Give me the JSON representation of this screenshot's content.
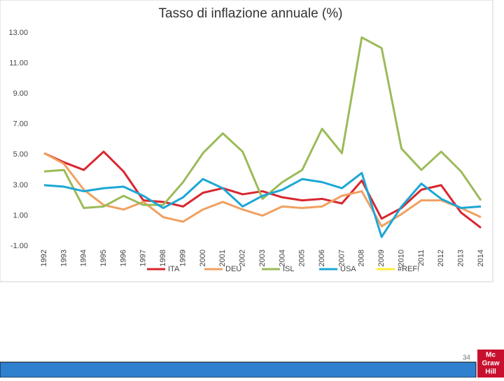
{
  "chart_data": {
    "type": "line",
    "title": "Tasso di inflazione annuale (%)",
    "categories": [
      "1992",
      "1993",
      "1994",
      "1995",
      "1996",
      "1997",
      "1998",
      "1999",
      "2000",
      "2001",
      "2002",
      "2003",
      "2004",
      "2005",
      "2006",
      "2007",
      "2008",
      "2009",
      "2010",
      "2011",
      "2012",
      "2013",
      "2014"
    ],
    "series": [
      {
        "name": "ITA",
        "color": "#d9262e",
        "values": [
          5.1,
          4.5,
          4.0,
          5.2,
          3.9,
          2.0,
          1.9,
          1.6,
          2.5,
          2.8,
          2.4,
          2.6,
          2.2,
          2.0,
          2.1,
          1.8,
          3.3,
          0.8,
          1.5,
          2.7,
          3.0,
          1.2,
          0.2
        ]
      },
      {
        "name": "DEU",
        "color": "#f0a060",
        "values": [
          5.1,
          4.4,
          2.7,
          1.7,
          1.4,
          1.9,
          0.9,
          0.6,
          1.4,
          1.9,
          1.4,
          1.0,
          1.6,
          1.5,
          1.6,
          2.3,
          2.6,
          0.3,
          1.1,
          2.0,
          2.0,
          1.5,
          0.9
        ]
      },
      {
        "name": "ISL",
        "color": "#9bbb59",
        "values": [
          3.9,
          4.0,
          1.5,
          1.6,
          2.3,
          1.7,
          1.7,
          3.2,
          5.1,
          6.4,
          5.2,
          2.1,
          3.2,
          4.0,
          6.7,
          5.1,
          12.7,
          12.0,
          5.4,
          4.0,
          5.2,
          3.9,
          2.0
        ]
      },
      {
        "name": "USA",
        "color": "#1ba7d6",
        "values": [
          3.0,
          2.9,
          2.6,
          2.8,
          2.9,
          2.3,
          1.5,
          2.2,
          3.4,
          2.8,
          1.6,
          2.3,
          2.7,
          3.4,
          3.2,
          2.8,
          3.8,
          -0.4,
          1.6,
          3.1,
          2.1,
          1.5,
          1.6
        ]
      },
      {
        "name": "#REF!",
        "color": "#ffee33",
        "values": [
          null,
          null,
          null,
          null,
          null,
          null,
          null,
          null,
          null,
          null,
          null,
          null,
          null,
          null,
          null,
          null,
          null,
          null,
          null,
          null,
          null,
          null,
          null
        ]
      }
    ],
    "ylim": [
      -1,
      13
    ],
    "yticks": [
      {
        "value": -1,
        "label": "-1.00"
      },
      {
        "value": 1,
        "label": "1.00"
      },
      {
        "value": 3,
        "label": "3.00"
      },
      {
        "value": 5,
        "label": "5.00"
      },
      {
        "value": 7,
        "label": "7.00"
      },
      {
        "value": 9,
        "label": "9.00"
      },
      {
        "value": 11,
        "label": "11.00"
      },
      {
        "value": 13,
        "label": "13.00"
      }
    ],
    "grid": false,
    "legend": "bottom"
  },
  "page_number": "34",
  "logo": [
    "Mc",
    "Graw",
    "Hill"
  ]
}
